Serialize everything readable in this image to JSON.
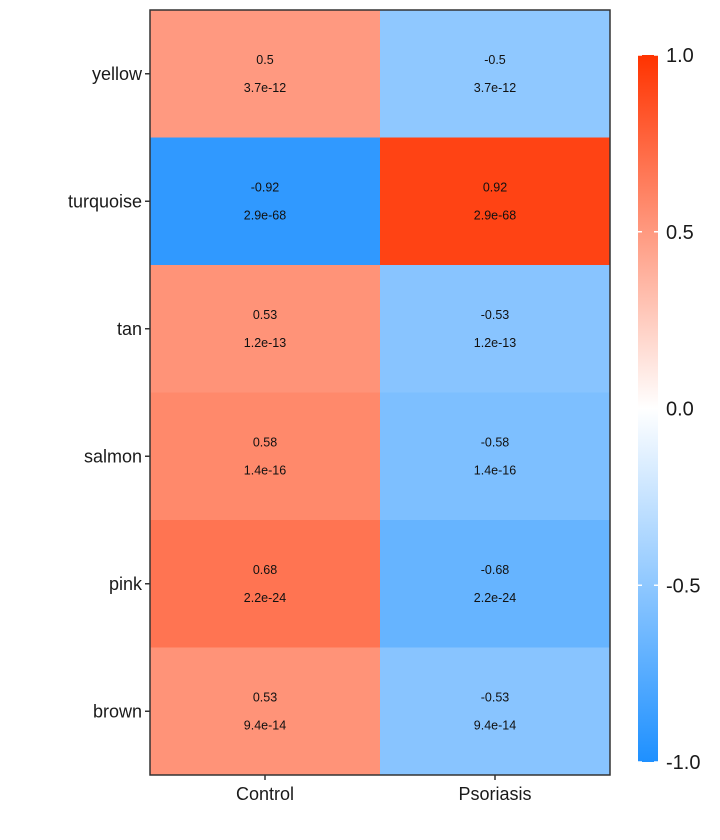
{
  "chart_data": {
    "type": "heatmap",
    "title": "",
    "xlabel": "",
    "ylabel": "",
    "x_categories": [
      "Control",
      "Psoriasis"
    ],
    "y_categories": [
      "yellow",
      "turquoise",
      "tan",
      "salmon",
      "pink",
      "brown"
    ],
    "cells": [
      [
        {
          "value": 0.5,
          "label": "0.5",
          "p": "3.7e-12"
        },
        {
          "value": -0.5,
          "label": "-0.5",
          "p": "3.7e-12"
        }
      ],
      [
        {
          "value": -0.92,
          "label": "-0.92",
          "p": "2.9e-68"
        },
        {
          "value": 0.92,
          "label": "0.92",
          "p": "2.9e-68"
        }
      ],
      [
        {
          "value": 0.53,
          "label": "0.53",
          "p": "1.2e-13"
        },
        {
          "value": -0.53,
          "label": "-0.53",
          "p": "1.2e-13"
        }
      ],
      [
        {
          "value": 0.58,
          "label": "0.58",
          "p": "1.4e-16"
        },
        {
          "value": -0.58,
          "label": "-0.58",
          "p": "1.4e-16"
        }
      ],
      [
        {
          "value": 0.68,
          "label": "0.68",
          "p": "2.2e-24"
        },
        {
          "value": -0.68,
          "label": "-0.68",
          "p": "2.2e-24"
        }
      ],
      [
        {
          "value": 0.53,
          "label": "0.53",
          "p": "9.4e-14"
        },
        {
          "value": -0.53,
          "label": "-0.53",
          "p": "9.4e-14"
        }
      ]
    ],
    "color_scale": {
      "min": -1,
      "max": 1,
      "low_color": "#1E90FF",
      "mid_color": "#FFFFFF",
      "high_color": "#FF3300"
    },
    "legend": {
      "position": "right",
      "ticks": [
        {
          "value": 1.0,
          "label": "1.0"
        },
        {
          "value": 0.5,
          "label": "0.5"
        },
        {
          "value": 0.0,
          "label": "0.0"
        },
        {
          "value": -0.5,
          "label": "-0.5"
        },
        {
          "value": -1.0,
          "label": "-1.0"
        }
      ]
    },
    "grid": false
  }
}
